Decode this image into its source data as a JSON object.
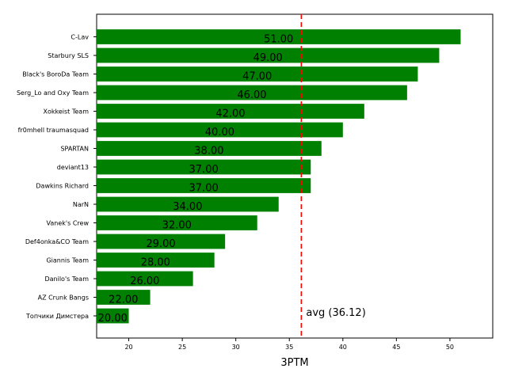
{
  "chart_data": {
    "type": "bar",
    "orientation": "horizontal",
    "categories": [
      "C-Lav",
      "Starbury SLS",
      "Black's BoroDa Team",
      "Serg_Lo and Oxy Team",
      "Xokkeist Team",
      "fr0mhell traumasquad",
      "SPARTAN",
      "deviant13",
      "Dawkins Richard",
      "NarN",
      "Vanek's Crew",
      "Def4onka&CO Team",
      "Giannis Team",
      "Danilo's Team",
      "AZ Crunk Bangs",
      "Топчики Димстера"
    ],
    "values": [
      51,
      49,
      47,
      46,
      42,
      40,
      38,
      37,
      37,
      34,
      32,
      29,
      28,
      26,
      22,
      20
    ],
    "value_labels": [
      "51.00",
      "49.00",
      "47.00",
      "46.00",
      "42.00",
      "40.00",
      "38.00",
      "37.00",
      "37.00",
      "34.00",
      "32.00",
      "29.00",
      "28.00",
      "26.00",
      "22.00",
      "20.00"
    ],
    "xlabel": "3PTM",
    "ylabel": "",
    "xlim": [
      17,
      54
    ],
    "xticks": [
      20,
      25,
      30,
      35,
      40,
      45,
      50
    ],
    "xtick_labels": [
      "20",
      "25",
      "30",
      "35",
      "40",
      "45",
      "50"
    ],
    "bar_color": "#008000",
    "average": 36.12,
    "average_label": "avg (36.12)",
    "average_line_color": "#ff0000",
    "grid": false,
    "legend": "none"
  }
}
